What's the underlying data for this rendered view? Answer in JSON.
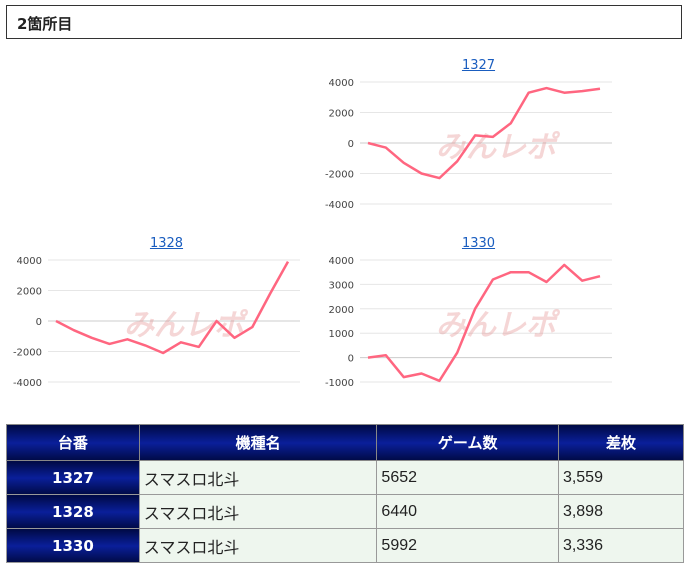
{
  "header": {
    "title": "2箇所目"
  },
  "watermark": "みんレポ",
  "colors": {
    "line": "#ff6680",
    "grid": "#e6e6e6",
    "header_bg": "#0a1f9a",
    "row_bg": "#eef6ee"
  },
  "chart_data": [
    {
      "type": "line",
      "title": "1327",
      "ylim": [
        -4000,
        4000
      ],
      "yticks": [
        4000,
        2000,
        0,
        -2000,
        -4000
      ],
      "grid": true,
      "series": [
        {
          "values": [
            0,
            -300,
            -1300,
            -2000,
            -2300,
            -1200,
            500,
            400,
            1300,
            3300,
            3600,
            3300,
            3400,
            3559
          ]
        }
      ]
    },
    {
      "type": "line",
      "title": "1328",
      "ylim": [
        -4000,
        4000
      ],
      "yticks": [
        4000,
        2000,
        0,
        -2000,
        -4000
      ],
      "grid": true,
      "series": [
        {
          "values": [
            0,
            -600,
            -1100,
            -1500,
            -1200,
            -1600,
            -2100,
            -1400,
            -1700,
            0,
            -1100,
            -400,
            1800,
            3898
          ]
        }
      ]
    },
    {
      "type": "line",
      "title": "1330",
      "ylim": [
        -1000,
        4000
      ],
      "yticks": [
        4000,
        3000,
        2000,
        1000,
        0,
        -1000
      ],
      "grid": true,
      "series": [
        {
          "values": [
            0,
            100,
            -800,
            -650,
            -950,
            200,
            2000,
            3200,
            3500,
            3500,
            3100,
            3800,
            3150,
            3336
          ]
        }
      ]
    }
  ],
  "table": {
    "headers": [
      "台番",
      "機種名",
      "ゲーム数",
      "差枚"
    ],
    "rows": [
      {
        "id": "1327",
        "machine": "スマスロ北斗",
        "games": "5652",
        "diff": "3,559"
      },
      {
        "id": "1328",
        "machine": "スマスロ北斗",
        "games": "6440",
        "diff": "3,898"
      },
      {
        "id": "1330",
        "machine": "スマスロ北斗",
        "games": "5992",
        "diff": "3,336"
      }
    ]
  }
}
